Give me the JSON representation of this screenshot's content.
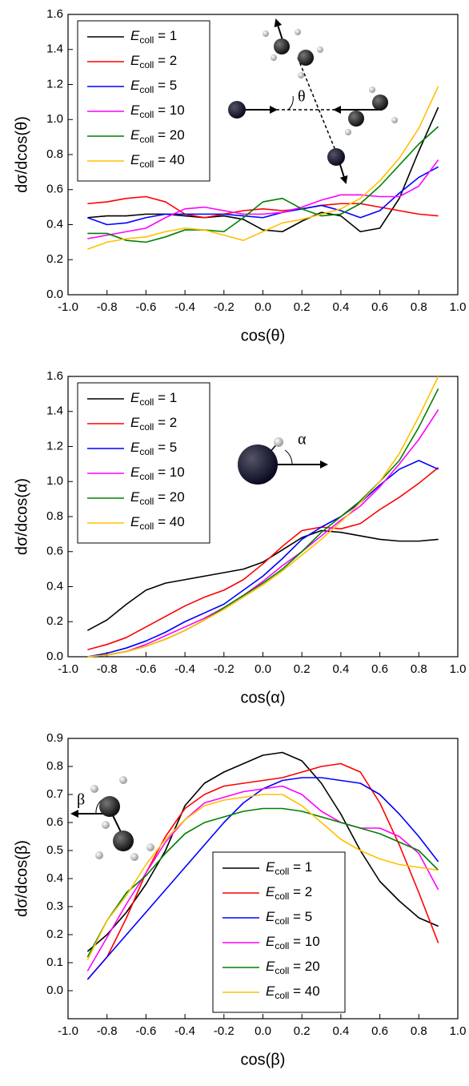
{
  "chart_data": [
    {
      "type": "line",
      "xlabel": "cos(θ)",
      "ylabel": "dσ/dcos(θ)",
      "annotation": "θ",
      "legend": "upper left",
      "x": [
        -0.9,
        -0.8,
        -0.7,
        -0.6,
        -0.5,
        -0.4,
        -0.3,
        -0.2,
        -0.1,
        0.0,
        0.1,
        0.2,
        0.3,
        0.4,
        0.5,
        0.6,
        0.7,
        0.8,
        0.9
      ],
      "xlim": [
        -1,
        1
      ],
      "xticks": [
        {
          "value": -1,
          "label": "-1.0"
        },
        {
          "value": -0.8,
          "label": "-0.8"
        },
        {
          "value": -0.6,
          "label": "-0.6"
        },
        {
          "value": -0.4,
          "label": "-0.4"
        },
        {
          "value": -0.2,
          "label": "-0.2"
        },
        {
          "value": 0,
          "label": "0.0"
        },
        {
          "value": 0.2,
          "label": "0.2"
        },
        {
          "value": 0.4,
          "label": "0.4"
        },
        {
          "value": 0.6,
          "label": "0.6"
        },
        {
          "value": 0.8,
          "label": "0.8"
        },
        {
          "value": 1,
          "label": "1.0"
        }
      ],
      "ylim": [
        0,
        1.6
      ],
      "yticks": [
        {
          "value": 0,
          "label": "0.0"
        },
        {
          "value": 0.2,
          "label": "0.2"
        },
        {
          "value": 0.4,
          "label": "0.4"
        },
        {
          "value": 0.6,
          "label": "0.6"
        },
        {
          "value": 0.8,
          "label": "0.8"
        },
        {
          "value": 1,
          "label": "1.0"
        },
        {
          "value": 1.2,
          "label": "1.2"
        },
        {
          "value": 1.4,
          "label": "1.4"
        },
        {
          "value": 1.6,
          "label": "1.6"
        }
      ],
      "series": [
        {
          "name": "Ecoll = 1",
          "color": "#000000",
          "values": [
            0.44,
            0.45,
            0.45,
            0.46,
            0.46,
            0.45,
            0.44,
            0.45,
            0.43,
            0.37,
            0.36,
            0.42,
            0.47,
            0.45,
            0.36,
            0.38,
            0.55,
            0.82,
            1.07
          ]
        },
        {
          "name": "Ecoll = 2",
          "color": "#ff0000",
          "values": [
            0.52,
            0.53,
            0.55,
            0.56,
            0.53,
            0.46,
            0.44,
            0.46,
            0.48,
            0.49,
            0.48,
            0.49,
            0.51,
            0.52,
            0.52,
            0.5,
            0.48,
            0.46,
            0.45
          ]
        },
        {
          "name": "Ecoll = 5",
          "color": "#0000ff",
          "values": [
            0.44,
            0.4,
            0.41,
            0.44,
            0.46,
            0.46,
            0.46,
            0.46,
            0.45,
            0.44,
            0.47,
            0.49,
            0.51,
            0.48,
            0.44,
            0.48,
            0.58,
            0.67,
            0.73
          ]
        },
        {
          "name": "Ecoll = 10",
          "color": "#ff00ff",
          "values": [
            0.32,
            0.34,
            0.36,
            0.38,
            0.44,
            0.49,
            0.5,
            0.48,
            0.46,
            0.46,
            0.47,
            0.5,
            0.54,
            0.57,
            0.57,
            0.56,
            0.56,
            0.62,
            0.77
          ]
        },
        {
          "name": "Ecoll = 20",
          "color": "#008000",
          "values": [
            0.35,
            0.35,
            0.31,
            0.3,
            0.33,
            0.37,
            0.37,
            0.36,
            0.44,
            0.53,
            0.55,
            0.49,
            0.45,
            0.46,
            0.52,
            0.62,
            0.74,
            0.86,
            0.96
          ]
        },
        {
          "name": "Ecoll = 40",
          "color": "#ffc000",
          "values": [
            0.26,
            0.3,
            0.32,
            0.33,
            0.36,
            0.38,
            0.37,
            0.34,
            0.31,
            0.36,
            0.41,
            0.43,
            0.46,
            0.49,
            0.55,
            0.65,
            0.78,
            0.95,
            1.19
          ]
        }
      ]
    },
    {
      "type": "line",
      "xlabel": "cos(α)",
      "ylabel": "dσ/dcos(α)",
      "annotation": "α",
      "legend": "upper left",
      "x": [
        -0.9,
        -0.8,
        -0.7,
        -0.6,
        -0.5,
        -0.4,
        -0.3,
        -0.2,
        -0.1,
        0.0,
        0.1,
        0.2,
        0.3,
        0.4,
        0.5,
        0.6,
        0.7,
        0.8,
        0.9
      ],
      "xlim": [
        -1,
        1
      ],
      "xticks": [
        {
          "value": -1,
          "label": "-1.0"
        },
        {
          "value": -0.8,
          "label": "-0.8"
        },
        {
          "value": -0.6,
          "label": "-0.6"
        },
        {
          "value": -0.4,
          "label": "-0.4"
        },
        {
          "value": -0.2,
          "label": "-0.2"
        },
        {
          "value": 0,
          "label": "0.0"
        },
        {
          "value": 0.2,
          "label": "0.2"
        },
        {
          "value": 0.4,
          "label": "0.4"
        },
        {
          "value": 0.6,
          "label": "0.6"
        },
        {
          "value": 0.8,
          "label": "0.8"
        },
        {
          "value": 1,
          "label": "1.0"
        }
      ],
      "ylim": [
        0,
        1.6
      ],
      "yticks": [
        {
          "value": 0,
          "label": "0.0"
        },
        {
          "value": 0.2,
          "label": "0.2"
        },
        {
          "value": 0.4,
          "label": "0.4"
        },
        {
          "value": 0.6,
          "label": "0.6"
        },
        {
          "value": 0.8,
          "label": "0.8"
        },
        {
          "value": 1,
          "label": "1.0"
        },
        {
          "value": 1.2,
          "label": "1.2"
        },
        {
          "value": 1.4,
          "label": "1.4"
        },
        {
          "value": 1.6,
          "label": "1.6"
        }
      ],
      "series": [
        {
          "name": "Ecoll = 1",
          "color": "#000000",
          "values": [
            0.15,
            0.21,
            0.3,
            0.38,
            0.42,
            0.44,
            0.46,
            0.48,
            0.5,
            0.54,
            0.61,
            0.68,
            0.72,
            0.71,
            0.69,
            0.67,
            0.66,
            0.66,
            0.67
          ]
        },
        {
          "name": "Ecoll = 2",
          "color": "#ff0000",
          "values": [
            0.04,
            0.07,
            0.11,
            0.17,
            0.23,
            0.29,
            0.34,
            0.38,
            0.44,
            0.53,
            0.63,
            0.72,
            0.74,
            0.73,
            0.76,
            0.84,
            0.91,
            0.99,
            1.08
          ]
        },
        {
          "name": "Ecoll = 5",
          "color": "#0000ff",
          "values": [
            0.0,
            0.02,
            0.05,
            0.09,
            0.14,
            0.2,
            0.25,
            0.3,
            0.38,
            0.46,
            0.56,
            0.67,
            0.74,
            0.8,
            0.88,
            0.98,
            1.07,
            1.12,
            1.07
          ]
        },
        {
          "name": "Ecoll = 10",
          "color": "#ff00ff",
          "values": [
            0.0,
            0.01,
            0.03,
            0.07,
            0.12,
            0.17,
            0.22,
            0.28,
            0.35,
            0.43,
            0.52,
            0.6,
            0.69,
            0.78,
            0.86,
            0.97,
            1.1,
            1.24,
            1.41
          ]
        },
        {
          "name": "Ecoll = 20",
          "color": "#008000",
          "values": [
            0.0,
            0.01,
            0.03,
            0.06,
            0.1,
            0.15,
            0.21,
            0.28,
            0.35,
            0.42,
            0.5,
            0.6,
            0.71,
            0.8,
            0.89,
            1.0,
            1.12,
            1.31,
            1.53
          ]
        },
        {
          "name": "Ecoll = 40",
          "color": "#ffc000",
          "values": [
            0.0,
            0.01,
            0.03,
            0.06,
            0.1,
            0.15,
            0.21,
            0.27,
            0.34,
            0.41,
            0.49,
            0.58,
            0.67,
            0.77,
            0.88,
            1.0,
            1.16,
            1.37,
            1.6
          ]
        }
      ]
    },
    {
      "type": "line",
      "xlabel": "cos(β)",
      "ylabel": "dσ/dcos(β)",
      "annotation": "β",
      "legend": "lower center",
      "x": [
        -0.9,
        -0.8,
        -0.7,
        -0.6,
        -0.5,
        -0.4,
        -0.3,
        -0.2,
        -0.1,
        0.0,
        0.1,
        0.2,
        0.3,
        0.4,
        0.5,
        0.6,
        0.7,
        0.8,
        0.9
      ],
      "xlim": [
        -1,
        1
      ],
      "xticks": [
        {
          "value": -1,
          "label": "-1.0"
        },
        {
          "value": -0.8,
          "label": "-0.8"
        },
        {
          "value": -0.6,
          "label": "-0.6"
        },
        {
          "value": -0.4,
          "label": "-0.4"
        },
        {
          "value": -0.2,
          "label": "-0.2"
        },
        {
          "value": 0,
          "label": "0.0"
        },
        {
          "value": 0.2,
          "label": "0.2"
        },
        {
          "value": 0.4,
          "label": "0.4"
        },
        {
          "value": 0.6,
          "label": "0.6"
        },
        {
          "value": 0.8,
          "label": "0.8"
        },
        {
          "value": 1,
          "label": "1.0"
        }
      ],
      "ylim": [
        -0.1,
        0.9
      ],
      "yticks": [
        {
          "value": 0,
          "label": "0.0"
        },
        {
          "value": 0.1,
          "label": "0.1"
        },
        {
          "value": 0.2,
          "label": "0.2"
        },
        {
          "value": 0.3,
          "label": "0.3"
        },
        {
          "value": 0.4,
          "label": "0.4"
        },
        {
          "value": 0.5,
          "label": "0.5"
        },
        {
          "value": 0.6,
          "label": "0.6"
        },
        {
          "value": 0.7,
          "label": "0.7"
        },
        {
          "value": 0.8,
          "label": "0.8"
        },
        {
          "value": 0.9,
          "label": "0.9"
        }
      ],
      "series": [
        {
          "name": "Ecoll = 1",
          "color": "#000000",
          "values": [
            0.14,
            0.2,
            0.28,
            0.38,
            0.5,
            0.66,
            0.74,
            0.78,
            0.81,
            0.84,
            0.85,
            0.82,
            0.74,
            0.63,
            0.5,
            0.39,
            0.32,
            0.26,
            0.23
          ]
        },
        {
          "name": "Ecoll = 2",
          "color": "#ff0000",
          "values": [
            0.04,
            0.12,
            0.26,
            0.42,
            0.55,
            0.65,
            0.7,
            0.73,
            0.74,
            0.75,
            0.76,
            0.78,
            0.8,
            0.81,
            0.78,
            0.67,
            0.52,
            0.35,
            0.17
          ]
        },
        {
          "name": "Ecoll = 5",
          "color": "#0000ff",
          "values": [
            0.04,
            0.12,
            0.2,
            0.28,
            0.36,
            0.44,
            0.52,
            0.6,
            0.67,
            0.72,
            0.75,
            0.76,
            0.76,
            0.75,
            0.74,
            0.7,
            0.63,
            0.55,
            0.46
          ]
        },
        {
          "name": "Ecoll = 10",
          "color": "#ff00ff",
          "values": [
            0.07,
            0.19,
            0.31,
            0.42,
            0.53,
            0.61,
            0.67,
            0.69,
            0.71,
            0.72,
            0.73,
            0.7,
            0.64,
            0.6,
            0.58,
            0.58,
            0.55,
            0.49,
            0.36
          ]
        },
        {
          "name": "Ecoll = 20",
          "color": "#008000",
          "values": [
            0.12,
            0.25,
            0.35,
            0.41,
            0.49,
            0.56,
            0.6,
            0.62,
            0.64,
            0.65,
            0.65,
            0.64,
            0.62,
            0.6,
            0.58,
            0.56,
            0.53,
            0.5,
            0.43
          ]
        },
        {
          "name": "Ecoll = 40",
          "color": "#ffc000",
          "values": [
            0.11,
            0.25,
            0.34,
            0.45,
            0.54,
            0.61,
            0.66,
            0.68,
            0.69,
            0.7,
            0.7,
            0.66,
            0.6,
            0.54,
            0.5,
            0.47,
            0.45,
            0.44,
            0.43
          ]
        }
      ]
    }
  ]
}
